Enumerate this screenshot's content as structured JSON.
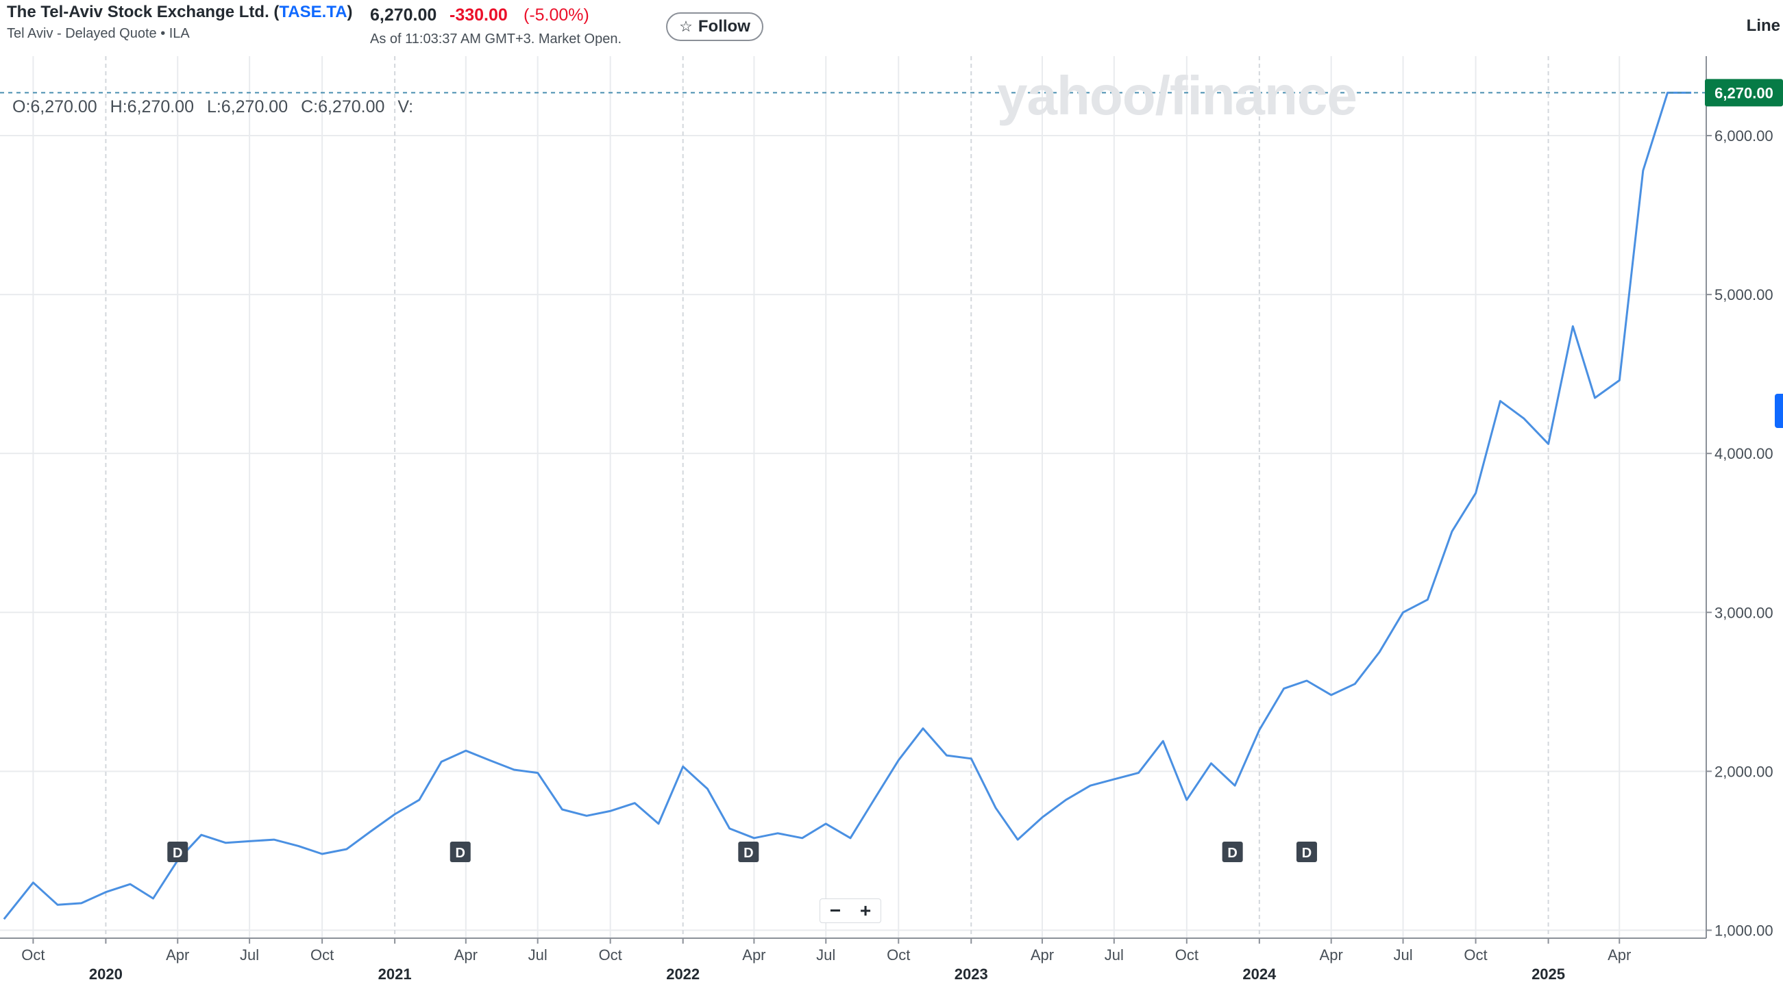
{
  "header": {
    "company_name": "The Tel-Aviv Stock Exchange Ltd.",
    "symbol": "TASE.TA",
    "subtitle": "Tel Aviv - Delayed Quote • ILA",
    "price": "6,270.00",
    "change": "-330.00",
    "change_percent": "(-5.00%)",
    "as_of": "As of 11:03:37 AM GMT+3. Market Open.",
    "follow_label": "Follow",
    "chart_type_label": "Line"
  },
  "ohlc": {
    "open": "O:6,270.00",
    "high": "H:6,270.00",
    "low": "L:6,270.00",
    "close": "C:6,270.00",
    "volume": "V:"
  },
  "watermark": "yahoo/finance",
  "zoom": {
    "minus": "−",
    "plus": "+"
  },
  "current_price_label": "6,270.00",
  "colors": {
    "line": "#4a90e2",
    "grid": "#e9ebee",
    "last_price_bg": "#067b46",
    "dividend_marker": "#3c4550",
    "negative": "#eb0f29",
    "link": "#0f69ff"
  },
  "chart_data": {
    "type": "line",
    "title": "",
    "xlabel": "",
    "ylabel": "",
    "ylim": [
      950,
      6500
    ],
    "y_ticks": [
      "1,000.00",
      "2,000.00",
      "3,000.00",
      "4,000.00",
      "5,000.00",
      "6,000.00"
    ],
    "y_tick_values": [
      1000,
      2000,
      3000,
      4000,
      5000,
      6000
    ],
    "x_tick_labels": [
      {
        "date": "2019-10-01",
        "label": "Oct"
      },
      {
        "date": "2020-04-01",
        "label": "Apr"
      },
      {
        "date": "2020-07-01",
        "label": "Jul"
      },
      {
        "date": "2020-10-01",
        "label": "Oct"
      },
      {
        "date": "2021-04-01",
        "label": "Apr"
      },
      {
        "date": "2021-07-01",
        "label": "Jul"
      },
      {
        "date": "2021-10-01",
        "label": "Oct"
      },
      {
        "date": "2022-04-01",
        "label": "Apr"
      },
      {
        "date": "2022-07-01",
        "label": "Jul"
      },
      {
        "date": "2022-10-01",
        "label": "Oct"
      },
      {
        "date": "2023-04-01",
        "label": "Apr"
      },
      {
        "date": "2023-07-01",
        "label": "Jul"
      },
      {
        "date": "2023-10-01",
        "label": "Oct"
      },
      {
        "date": "2024-04-01",
        "label": "Apr"
      },
      {
        "date": "2024-07-01",
        "label": "Jul"
      },
      {
        "date": "2024-10-01",
        "label": "Oct"
      },
      {
        "date": "2025-04-01",
        "label": "Apr"
      }
    ],
    "year_labels": [
      {
        "date": "2020-01-01",
        "label": "2020"
      },
      {
        "date": "2021-01-01",
        "label": "2021"
      },
      {
        "date": "2022-01-01",
        "label": "2022"
      },
      {
        "date": "2023-01-01",
        "label": "2023"
      },
      {
        "date": "2024-01-01",
        "label": "2024"
      },
      {
        "date": "2025-01-01",
        "label": "2025"
      }
    ],
    "x_range": [
      "2019-08-20",
      "2025-07-20"
    ],
    "series": [
      {
        "x": [
          "2019-08-25",
          "2019-10-01",
          "2019-11-01",
          "2019-12-01",
          "2020-01-01",
          "2020-02-01",
          "2020-03-01",
          "2020-04-01",
          "2020-05-01",
          "2020-06-01",
          "2020-07-01",
          "2020-08-01",
          "2020-09-01",
          "2020-10-01",
          "2020-11-01",
          "2020-12-01",
          "2021-01-01",
          "2021-02-01",
          "2021-03-01",
          "2021-04-01",
          "2021-05-01",
          "2021-06-01",
          "2021-07-01",
          "2021-08-01",
          "2021-09-01",
          "2021-10-01",
          "2021-11-01",
          "2021-12-01",
          "2022-01-01",
          "2022-02-01",
          "2022-03-01",
          "2022-04-01",
          "2022-05-01",
          "2022-06-01",
          "2022-07-01",
          "2022-08-01",
          "2022-09-01",
          "2022-10-01",
          "2022-11-01",
          "2022-12-01",
          "2023-01-01",
          "2023-02-01",
          "2023-03-01",
          "2023-04-01",
          "2023-05-01",
          "2023-06-01",
          "2023-07-01",
          "2023-08-01",
          "2023-09-01",
          "2023-10-01",
          "2023-11-01",
          "2023-12-01",
          "2024-01-01",
          "2024-02-01",
          "2024-03-01",
          "2024-04-01",
          "2024-05-01",
          "2024-06-01",
          "2024-07-01",
          "2024-08-01",
          "2024-09-01",
          "2024-10-01",
          "2024-11-01",
          "2024-12-01",
          "2025-01-01",
          "2025-02-01",
          "2025-03-01",
          "2025-04-01",
          "2025-05-01",
          "2025-06-01",
          "2025-07-01"
        ],
        "values": [
          1070,
          1300,
          1160,
          1170,
          1240,
          1290,
          1200,
          1440,
          1600,
          1550,
          1560,
          1570,
          1530,
          1480,
          1510,
          1620,
          1730,
          1820,
          2060,
          2130,
          2070,
          2010,
          1990,
          1760,
          1720,
          1750,
          1800,
          1670,
          2030,
          1890,
          1640,
          1580,
          1610,
          1580,
          1670,
          1580,
          1830,
          2070,
          2270,
          2100,
          2080,
          1770,
          1570,
          1710,
          1820,
          1910,
          1950,
          1990,
          2190,
          1820,
          2050,
          1910,
          2260,
          2520,
          2570,
          2480,
          2550,
          2750,
          3000,
          3080,
          3510,
          3750,
          4330,
          4220,
          4060,
          4800,
          4350,
          4460,
          5780,
          6270,
          6270
        ],
        "line_color": "#4a90e2"
      }
    ],
    "dividend_markers": [
      {
        "date": "2020-04-01",
        "label": "D"
      },
      {
        "date": "2021-03-25",
        "label": "D"
      },
      {
        "date": "2022-03-25",
        "label": "D"
      },
      {
        "date": "2023-11-28",
        "label": "D"
      },
      {
        "date": "2024-03-01",
        "label": "D"
      }
    ],
    "last_value": 6270,
    "grid": true,
    "y_axis_position": "right"
  }
}
